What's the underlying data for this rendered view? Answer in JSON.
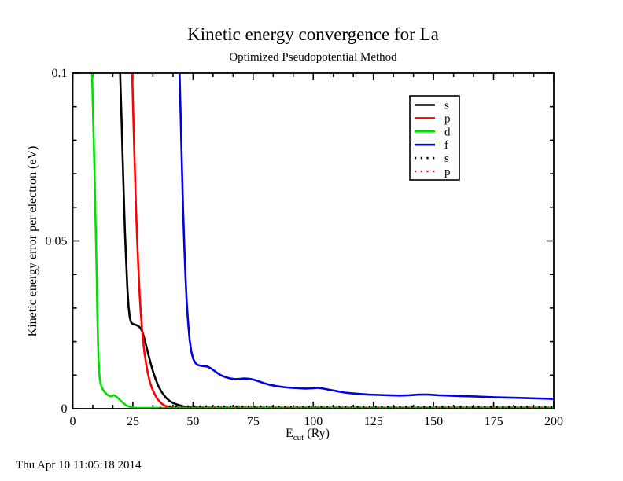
{
  "page": {
    "timestamp": "Thu Apr 10 11:05:18 2014",
    "background": "#ffffff",
    "foreground": "#000000"
  },
  "chart_data": {
    "type": "line",
    "title": "Kinetic energy convergence for La",
    "subtitle": "Optimized Pseudopotential Method",
    "ylabel": "Kinetic energy error per electron (eV)",
    "xlabel": {
      "main": "E",
      "sub": "cut",
      "unit": " (Ry)"
    },
    "xlim": [
      0,
      200
    ],
    "ylim": [
      0,
      0.1
    ],
    "x_major_ticks": [
      0,
      25,
      50,
      75,
      100,
      125,
      150,
      175,
      200
    ],
    "x_tick_labels": [
      "0",
      "25",
      "50",
      "75",
      "100",
      "125",
      "150",
      "175",
      "200"
    ],
    "x_minor_per_major": 3,
    "y_major_ticks": [
      0,
      0.05,
      0.1
    ],
    "y_tick_labels": [
      "0",
      "0.05",
      "0.1"
    ],
    "y_minor_step": 0.01,
    "grid": false,
    "legend_position": "inside-upper-right",
    "frame_color": "#000000",
    "series": [
      {
        "name": "s",
        "color": "#000000",
        "style": "solid",
        "points": [
          [
            19.7,
            0.1
          ],
          [
            20.2,
            0.088
          ],
          [
            20.7,
            0.076
          ],
          [
            21.2,
            0.064
          ],
          [
            21.7,
            0.053
          ],
          [
            22.2,
            0.044
          ],
          [
            22.7,
            0.036
          ],
          [
            23.2,
            0.0305
          ],
          [
            23.7,
            0.0272
          ],
          [
            24.2,
            0.0258
          ],
          [
            24.8,
            0.0253
          ],
          [
            25.6,
            0.0251
          ],
          [
            26.5,
            0.0249
          ],
          [
            27.4,
            0.0246
          ],
          [
            28.2,
            0.024
          ],
          [
            29.0,
            0.0228
          ],
          [
            29.8,
            0.0208
          ],
          [
            30.7,
            0.0183
          ],
          [
            31.6,
            0.0157
          ],
          [
            32.5,
            0.0132
          ],
          [
            33.5,
            0.0108
          ],
          [
            34.5,
            0.0087
          ],
          [
            35.5,
            0.0069
          ],
          [
            36.6,
            0.0054
          ],
          [
            37.7,
            0.0042
          ],
          [
            39.0,
            0.0031
          ],
          [
            40.5,
            0.0022
          ],
          [
            42.0,
            0.0016
          ],
          [
            44.0,
            0.0011
          ],
          [
            46.0,
            0.0007
          ],
          [
            48.0,
            0.0005
          ],
          [
            50.0,
            0.0004
          ],
          [
            55,
            0.0003
          ],
          [
            200,
            0.0003
          ]
        ]
      },
      {
        "name": "p",
        "color": "#ff0000",
        "style": "solid",
        "points": [
          [
            24.7,
            0.1
          ],
          [
            25.2,
            0.087
          ],
          [
            25.7,
            0.074
          ],
          [
            26.2,
            0.062
          ],
          [
            26.7,
            0.052
          ],
          [
            27.2,
            0.043
          ],
          [
            27.7,
            0.0355
          ],
          [
            28.2,
            0.0295
          ],
          [
            28.7,
            0.0245
          ],
          [
            29.2,
            0.0205
          ],
          [
            29.8,
            0.0168
          ],
          [
            30.5,
            0.0133
          ],
          [
            31.3,
            0.0103
          ],
          [
            32.1,
            0.0079
          ],
          [
            33.0,
            0.006
          ],
          [
            34.0,
            0.0044
          ],
          [
            35.0,
            0.0031
          ],
          [
            36.0,
            0.0022
          ],
          [
            37.0,
            0.0015
          ],
          [
            38.0,
            0.001
          ],
          [
            39.5,
            0.0006
          ],
          [
            41,
            0.0004
          ],
          [
            44,
            0.0003
          ],
          [
            200,
            0.00025
          ]
        ]
      },
      {
        "name": "d",
        "color": "#00dd00",
        "style": "solid",
        "points": [
          [
            8.0,
            0.1
          ],
          [
            8.5,
            0.086
          ],
          [
            9.0,
            0.072
          ],
          [
            9.4,
            0.059
          ],
          [
            9.7,
            0.048
          ],
          [
            10.0,
            0.038
          ],
          [
            10.2,
            0.029
          ],
          [
            10.45,
            0.021
          ],
          [
            10.7,
            0.0152
          ],
          [
            10.95,
            0.0115
          ],
          [
            11.2,
            0.0092
          ],
          [
            11.5,
            0.0077
          ],
          [
            11.9,
            0.0066
          ],
          [
            12.4,
            0.0059
          ],
          [
            13.0,
            0.0052
          ],
          [
            13.7,
            0.0046
          ],
          [
            14.5,
            0.0041
          ],
          [
            15.3,
            0.0038
          ],
          [
            16.2,
            0.0037
          ],
          [
            17.0,
            0.004
          ],
          [
            17.8,
            0.0038
          ],
          [
            18.6,
            0.0033
          ],
          [
            19.5,
            0.0027
          ],
          [
            20.5,
            0.002
          ],
          [
            21.5,
            0.0014
          ],
          [
            22.5,
            0.0009
          ],
          [
            23.5,
            0.0006
          ],
          [
            25.0,
            0.0003
          ],
          [
            27,
            0.0002
          ],
          [
            200,
            0.0002
          ]
        ]
      },
      {
        "name": "f",
        "color": "#0000e0",
        "style": "solid",
        "points": [
          [
            44.4,
            0.1
          ],
          [
            44.9,
            0.086
          ],
          [
            45.4,
            0.072
          ],
          [
            45.9,
            0.059
          ],
          [
            46.4,
            0.048
          ],
          [
            46.9,
            0.039
          ],
          [
            47.4,
            0.0315
          ],
          [
            48.0,
            0.0253
          ],
          [
            48.6,
            0.0205
          ],
          [
            49.3,
            0.017
          ],
          [
            50.1,
            0.0148
          ],
          [
            51.0,
            0.0136
          ],
          [
            52.0,
            0.013
          ],
          [
            53.2,
            0.0128
          ],
          [
            54.5,
            0.0127
          ],
          [
            55.8,
            0.0126
          ],
          [
            57.0,
            0.0122
          ],
          [
            58.3,
            0.0116
          ],
          [
            59.8,
            0.0108
          ],
          [
            61.5,
            0.01
          ],
          [
            63.5,
            0.0094
          ],
          [
            65.5,
            0.009
          ],
          [
            67.5,
            0.0088
          ],
          [
            69.5,
            0.0089
          ],
          [
            71.5,
            0.009
          ],
          [
            73.5,
            0.0089
          ],
          [
            75.5,
            0.0086
          ],
          [
            77.5,
            0.0081
          ],
          [
            79.5,
            0.0076
          ],
          [
            82,
            0.0071
          ],
          [
            85,
            0.0067
          ],
          [
            88,
            0.0064
          ],
          [
            91,
            0.0062
          ],
          [
            94,
            0.0061
          ],
          [
            97,
            0.006
          ],
          [
            100,
            0.0061
          ],
          [
            102,
            0.0062
          ],
          [
            104,
            0.006
          ],
          [
            107,
            0.0056
          ],
          [
            110,
            0.0052
          ],
          [
            113,
            0.0048
          ],
          [
            116,
            0.0046
          ],
          [
            119,
            0.0044
          ],
          [
            123,
            0.0042
          ],
          [
            127,
            0.0041
          ],
          [
            131,
            0.004
          ],
          [
            136,
            0.0039
          ],
          [
            140,
            0.004
          ],
          [
            144,
            0.0042
          ],
          [
            148,
            0.0042
          ],
          [
            152,
            0.004
          ],
          [
            156,
            0.0039
          ],
          [
            160,
            0.0038
          ],
          [
            164,
            0.0037
          ],
          [
            168,
            0.0036
          ],
          [
            172,
            0.0035
          ],
          [
            176,
            0.0034
          ],
          [
            181,
            0.0033
          ],
          [
            186,
            0.0032
          ],
          [
            191,
            0.0031
          ],
          [
            196,
            0.003
          ],
          [
            200,
            0.0029
          ]
        ]
      },
      {
        "name": "s",
        "color": "#000000",
        "style": "dotted",
        "points": [
          [
            40,
            0.0007
          ],
          [
            200,
            0.0005
          ]
        ]
      },
      {
        "name": "p",
        "color": "#cc2222",
        "style": "dotted",
        "points": [
          [
            36,
            0.00035
          ],
          [
            200,
            0.0002
          ]
        ]
      }
    ]
  }
}
